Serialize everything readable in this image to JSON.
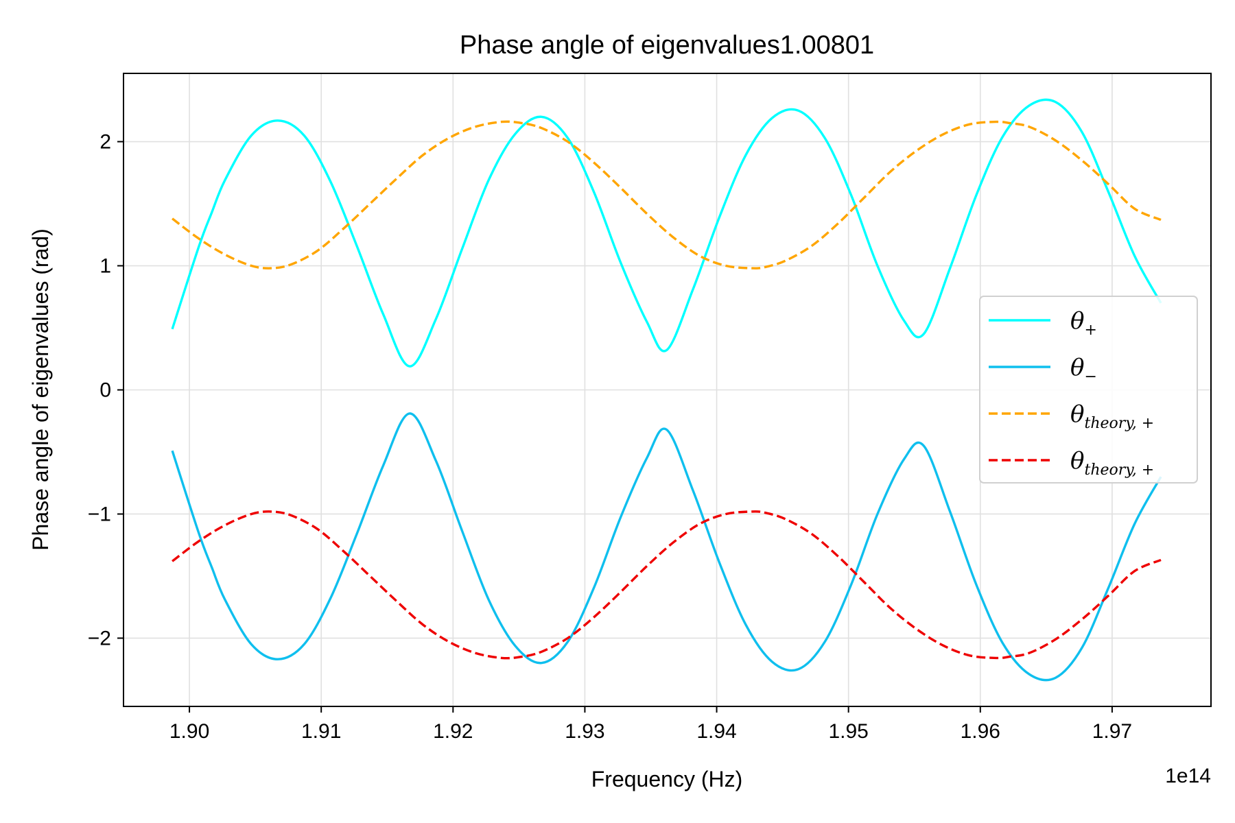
{
  "chart_data": {
    "type": "line",
    "title": "Phase angle of eigenvalues1.00801",
    "xlabel": "Frequency (Hz)",
    "ylabel": "Phase angle of eigenvalues (rad)",
    "x_offset_text": "1e14",
    "x_scale": 100000000000000.0,
    "xlim": [
      1.895,
      1.9775
    ],
    "ylim": [
      -2.55,
      2.55
    ],
    "x_ticks": [
      1.9,
      1.91,
      1.92,
      1.93,
      1.94,
      1.95,
      1.96,
      1.97
    ],
    "x_tick_labels": [
      "1.90",
      "1.91",
      "1.92",
      "1.93",
      "1.94",
      "1.95",
      "1.96",
      "1.97"
    ],
    "y_ticks": [
      -2,
      -1,
      0,
      1,
      2
    ],
    "y_tick_labels": [
      "−2",
      "−1",
      "0",
      "1",
      "2"
    ],
    "grid": true,
    "legend_position": "center-right",
    "series": [
      {
        "name": "θ+",
        "legend_main": "θ",
        "legend_sub": "+",
        "color": "#00ffff",
        "dash": "solid",
        "x": [
          1.8987,
          1.9007,
          1.9017,
          1.9027,
          1.9047,
          1.9067,
          1.9087,
          1.9107,
          1.9127,
          1.9147,
          1.9167,
          1.9187,
          1.9207,
          1.9227,
          1.9247,
          1.9267,
          1.9287,
          1.9307,
          1.9327,
          1.9347,
          1.9362,
          1.9382,
          1.9402,
          1.9422,
          1.9442,
          1.9462,
          1.9482,
          1.9502,
          1.9522,
          1.9542,
          1.9557,
          1.9577,
          1.9597,
          1.9617,
          1.9637,
          1.9657,
          1.9677,
          1.9697,
          1.9717,
          1.9737
        ],
        "y": [
          0.49,
          1.15,
          1.43,
          1.69,
          2.05,
          2.17,
          2.05,
          1.68,
          1.16,
          0.61,
          0.19,
          0.57,
          1.14,
          1.69,
          2.06,
          2.2,
          2.03,
          1.59,
          1.03,
          0.55,
          0.32,
          0.81,
          1.39,
          1.89,
          2.19,
          2.25,
          2.03,
          1.57,
          1.0,
          0.56,
          0.45,
          0.98,
          1.57,
          2.04,
          2.29,
          2.32,
          2.08,
          1.6,
          1.08,
          0.7
        ]
      },
      {
        "name": "θ−",
        "legend_main": "θ",
        "legend_sub": "−",
        "color": "#0fbfee",
        "dash": "solid",
        "x": [
          1.8987,
          1.9007,
          1.9017,
          1.9027,
          1.9047,
          1.9067,
          1.9087,
          1.9107,
          1.9127,
          1.9147,
          1.9167,
          1.9187,
          1.9207,
          1.9227,
          1.9247,
          1.9267,
          1.9287,
          1.9307,
          1.9327,
          1.9347,
          1.9362,
          1.9382,
          1.9402,
          1.9422,
          1.9442,
          1.9462,
          1.9482,
          1.9502,
          1.9522,
          1.9542,
          1.9557,
          1.9577,
          1.9597,
          1.9617,
          1.9637,
          1.9657,
          1.9677,
          1.9697,
          1.9717,
          1.9737
        ],
        "y": [
          -0.49,
          -1.15,
          -1.43,
          -1.69,
          -2.05,
          -2.17,
          -2.05,
          -1.68,
          -1.16,
          -0.61,
          -0.19,
          -0.57,
          -1.14,
          -1.69,
          -2.06,
          -2.2,
          -2.03,
          -1.59,
          -1.03,
          -0.55,
          -0.32,
          -0.81,
          -1.39,
          -1.89,
          -2.19,
          -2.25,
          -2.03,
          -1.57,
          -1.0,
          -0.56,
          -0.45,
          -0.98,
          -1.57,
          -2.04,
          -2.29,
          -2.32,
          -2.08,
          -1.6,
          -1.08,
          -0.7
        ]
      },
      {
        "name": "θtheory, +",
        "legend_main": "θ",
        "legend_sub": "theory, +",
        "color": "#ffa500",
        "dash": "dashed",
        "x": [
          1.8987,
          1.9007,
          1.9027,
          1.9047,
          1.9062,
          1.9077,
          1.9097,
          1.9117,
          1.9137,
          1.9157,
          1.9177,
          1.9197,
          1.9217,
          1.9237,
          1.9252,
          1.9267,
          1.9287,
          1.9307,
          1.9327,
          1.9347,
          1.9367,
          1.9387,
          1.9407,
          1.9427,
          1.9437,
          1.9452,
          1.9472,
          1.9492,
          1.9512,
          1.9532,
          1.9552,
          1.9572,
          1.9592,
          1.9612,
          1.9622,
          1.9637,
          1.9657,
          1.9677,
          1.9697,
          1.9717,
          1.9737
        ],
        "y": [
          1.38,
          1.22,
          1.09,
          1.0,
          0.98,
          1.01,
          1.12,
          1.3,
          1.5,
          1.7,
          1.89,
          2.03,
          2.12,
          2.16,
          2.15,
          2.11,
          2.0,
          1.83,
          1.63,
          1.42,
          1.23,
          1.08,
          1.0,
          0.98,
          0.99,
          1.04,
          1.16,
          1.34,
          1.55,
          1.76,
          1.93,
          2.06,
          2.14,
          2.16,
          2.15,
          2.12,
          2.01,
          1.85,
          1.66,
          1.46,
          1.37
        ]
      },
      {
        "name": "θtheory, +",
        "legend_main": "θ",
        "legend_sub": "theory, +",
        "color": "#ee0000",
        "dash": "dashed",
        "x": [
          1.8987,
          1.9007,
          1.9027,
          1.9047,
          1.9062,
          1.9077,
          1.9097,
          1.9117,
          1.9137,
          1.9157,
          1.9177,
          1.9197,
          1.9217,
          1.9237,
          1.9252,
          1.9267,
          1.9287,
          1.9307,
          1.9327,
          1.9347,
          1.9367,
          1.9387,
          1.9407,
          1.9427,
          1.9437,
          1.9452,
          1.9472,
          1.9492,
          1.9512,
          1.9532,
          1.9552,
          1.9572,
          1.9592,
          1.9612,
          1.9622,
          1.9637,
          1.9657,
          1.9677,
          1.9697,
          1.9717,
          1.9737
        ],
        "y": [
          -1.38,
          -1.22,
          -1.09,
          -1.0,
          -0.98,
          -1.01,
          -1.12,
          -1.3,
          -1.5,
          -1.7,
          -1.89,
          -2.03,
          -2.12,
          -2.16,
          -2.15,
          -2.11,
          -2.0,
          -1.83,
          -1.63,
          -1.42,
          -1.23,
          -1.08,
          -1.0,
          -0.98,
          -0.99,
          -1.04,
          -1.16,
          -1.34,
          -1.55,
          -1.76,
          -1.93,
          -2.06,
          -2.14,
          -2.16,
          -2.15,
          -2.12,
          -2.01,
          -1.85,
          -1.66,
          -1.46,
          -1.37
        ]
      }
    ]
  }
}
